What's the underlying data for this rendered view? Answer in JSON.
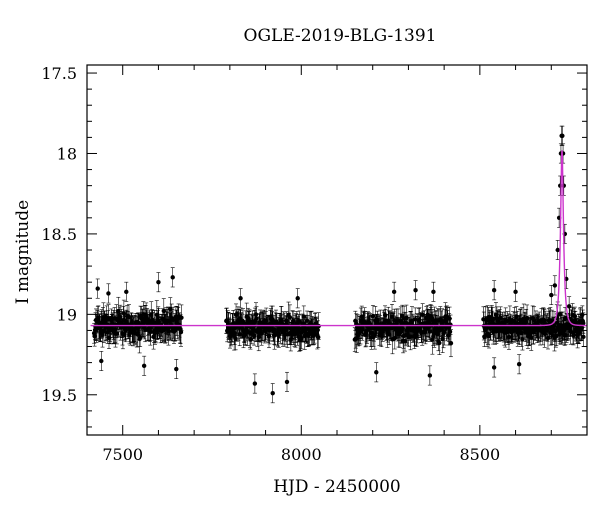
{
  "chart_data": {
    "type": "scatter",
    "title": "OGLE-2019-BLG-1391",
    "xlabel": "HJD - 2450000",
    "ylabel": "I magnitude",
    "xlim": [
      7400,
      8800
    ],
    "ylim": [
      19.75,
      17.45
    ],
    "y_inverted": true,
    "x_ticks": [
      7500,
      8000,
      8500
    ],
    "y_ticks": [
      17.5,
      18,
      18.5,
      19,
      19.5
    ],
    "grid": false,
    "legend": "none",
    "colors": {
      "points": "#000000",
      "model": "#cc33cc",
      "axes": "#000000"
    },
    "series": [
      {
        "type": "scatter_with_errorbars",
        "seasons": [
          {
            "x_range": [
              7420,
              7665
            ],
            "mean_mag": 19.07,
            "scatter": 0.11,
            "error": 0.07
          },
          {
            "x_range": [
              7790,
              8050
            ],
            "mean_mag": 19.08,
            "scatter": 0.11,
            "error": 0.07
          },
          {
            "x_range": [
              8150,
              8420
            ],
            "mean_mag": 19.08,
            "scatter": 0.11,
            "error": 0.07
          },
          {
            "x_range": [
              8510,
              8790
            ],
            "mean_mag": 19.08,
            "scatter": 0.11,
            "error": 0.07
          }
        ],
        "points": [
          [
            7430,
            18.84
          ],
          [
            7460,
            18.87
          ],
          [
            7510,
            18.86
          ],
          [
            7600,
            18.8
          ],
          [
            7640,
            18.77
          ],
          [
            7440,
            19.29
          ],
          [
            7560,
            19.32
          ],
          [
            7650,
            19.34
          ],
          [
            7870,
            19.43
          ],
          [
            7920,
            19.49
          ],
          [
            7960,
            19.42
          ],
          [
            7830,
            18.9
          ],
          [
            7990,
            18.9
          ],
          [
            8210,
            19.36
          ],
          [
            8360,
            19.38
          ],
          [
            8260,
            18.86
          ],
          [
            8320,
            18.85
          ],
          [
            8370,
            18.86
          ],
          [
            8540,
            19.33
          ],
          [
            8610,
            19.31
          ],
          [
            8540,
            18.85
          ],
          [
            8600,
            18.86
          ],
          [
            8700,
            18.88
          ],
          [
            8710,
            18.82
          ],
          [
            8718,
            18.6
          ],
          [
            8722,
            18.4
          ],
          [
            8725,
            18.2
          ],
          [
            8727,
            18.0
          ],
          [
            8729,
            17.89
          ],
          [
            8731,
            17.89
          ],
          [
            8733,
            18.0
          ],
          [
            8735,
            18.2
          ],
          [
            8738,
            18.5
          ],
          [
            8742,
            18.78
          ],
          [
            8750,
            18.95
          ],
          [
            8762,
            19.13
          ],
          [
            8775,
            19.12
          ],
          [
            8790,
            19.14
          ]
        ]
      },
      {
        "type": "line",
        "name": "",
        "baseline_mag": 19.07,
        "peak_mag": 17.98,
        "t0": 8730,
        "tE": 8
      }
    ]
  }
}
